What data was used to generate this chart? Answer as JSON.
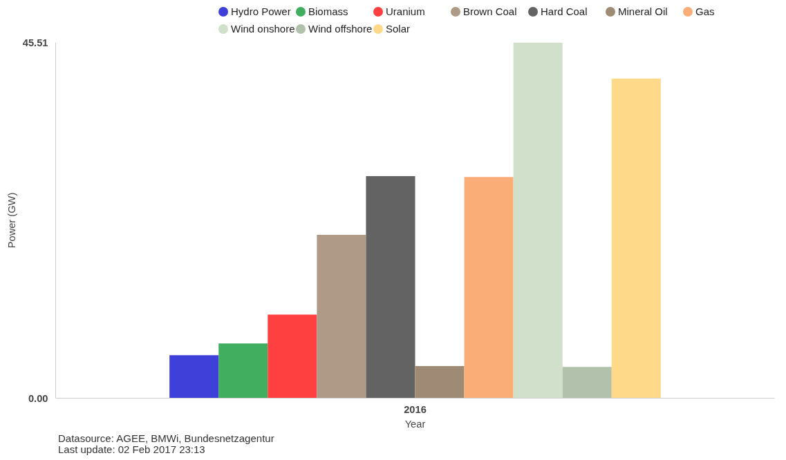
{
  "chart_data": {
    "type": "bar",
    "categories": [
      "2016"
    ],
    "xlabel": "Year",
    "ylabel": "Power (GW)",
    "ylim": [
      0,
      45.51
    ],
    "yticks": [
      {
        "value": 0,
        "label": "0.00"
      },
      45.51
    ],
    "grid": false,
    "legend": "top",
    "series": [
      {
        "name": "Hydro Power",
        "color": "#3f3fd9",
        "values": [
          5.5
        ]
      },
      {
        "name": "Biomass",
        "color": "#41ae5f",
        "values": [
          7.0
        ]
      },
      {
        "name": "Uranium",
        "color": "#ff4040",
        "values": [
          10.7
        ]
      },
      {
        "name": "Brown Coal",
        "color": "#ae9a86",
        "values": [
          20.9
        ]
      },
      {
        "name": "Hard Coal",
        "color": "#636363",
        "values": [
          28.4
        ]
      },
      {
        "name": "Mineral Oil",
        "color": "#9f8a76",
        "values": [
          4.1
        ]
      },
      {
        "name": "Gas",
        "color": "#fbad78",
        "values": [
          28.3
        ]
      },
      {
        "name": "Wind onshore",
        "color": "#d1e0ca",
        "values": [
          45.51
        ]
      },
      {
        "name": "Wind offshore",
        "color": "#b1c1ab",
        "values": [
          4.0
        ]
      },
      {
        "name": "Solar",
        "color": "#ffd98a",
        "values": [
          40.9
        ]
      }
    ],
    "annotations": [
      "Datasource: AGEE, BMWi, Bundesnetzagentur",
      "Last update: 02 Feb 2017 23:13"
    ]
  }
}
